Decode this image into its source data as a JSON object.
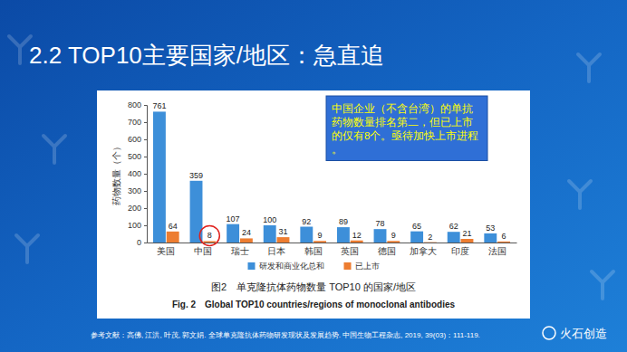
{
  "slide": {
    "title": "2.2 TOP10主要国家/地区：急直追",
    "reference": "参考文献：高佛, 江洪, 叶茂, 郭文娟. 全球单克隆抗体药物研发现状及发展趋势. 中国生物工程杂志, 2019, 39(03)：111-119.",
    "watermark": "火石创造"
  },
  "chart_data": {
    "type": "bar",
    "title": "图2　单克隆抗体药物数量 TOP10 的国家/地区",
    "subtitle": "Fig. 2　Global TOP10 countries/regions of monoclonal antibodies",
    "y_label": "药物数量（个）",
    "annotations": [
      "中国企业（不含台湾）的单抗药物数量排名第二，但已上市的仅有8个。亟待加快上市进程。"
    ],
    "categories": [
      "美国",
      "中国",
      "瑞士",
      "日本",
      "韩国",
      "英国",
      "德国",
      "加拿大",
      "印度",
      "法国"
    ],
    "series": [
      {
        "name": "研发和商业化总和",
        "color": "#3d8fd9",
        "values": [
          761,
          359,
          107,
          100,
          92,
          89,
          78,
          65,
          62,
          53
        ]
      },
      {
        "name": "已上市",
        "color": "#ed7d31",
        "values": [
          64,
          8,
          24,
          31,
          9,
          12,
          9,
          2,
          21,
          6
        ]
      }
    ],
    "ylim": [
      0,
      800
    ],
    "yticks": [
      0,
      100,
      200,
      300,
      400,
      500,
      600,
      700,
      800
    ],
    "grid": false,
    "legend": "bottom",
    "data_labels": true
  }
}
